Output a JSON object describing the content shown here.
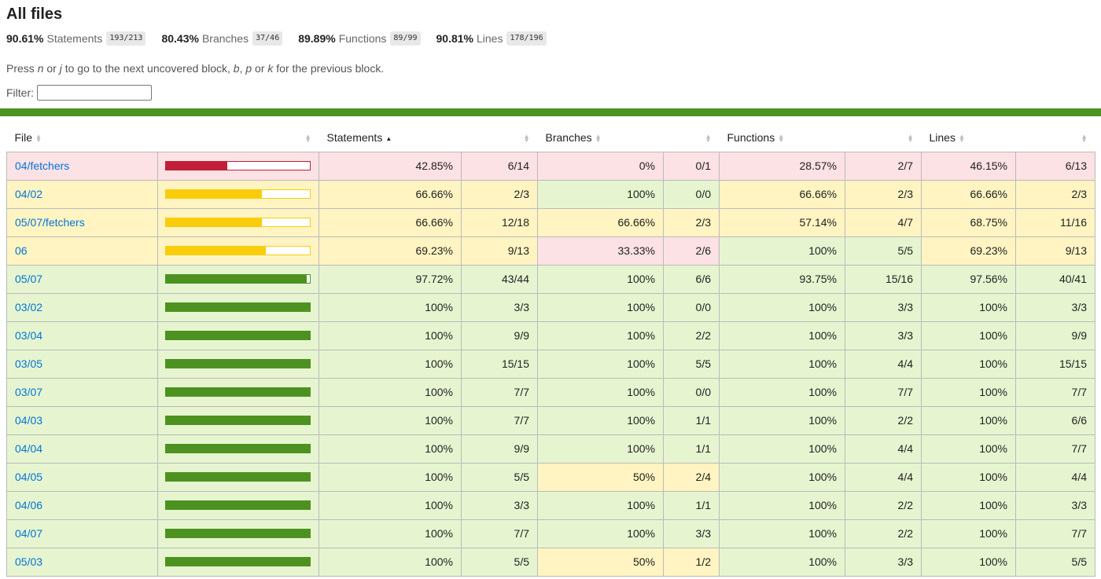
{
  "title": "All files",
  "summary": [
    {
      "pct": "90.61%",
      "name": "Statements",
      "fraction": "193/213"
    },
    {
      "pct": "80.43%",
      "name": "Branches",
      "fraction": "37/46"
    },
    {
      "pct": "89.89%",
      "name": "Functions",
      "fraction": "89/99"
    },
    {
      "pct": "90.81%",
      "name": "Lines",
      "fraction": "178/196"
    }
  ],
  "hint": {
    "press": "Press ",
    "n": "n",
    "or1": " or ",
    "j": "j",
    "mid": " to go to the next uncovered block, ",
    "b": "b",
    "comma": ", ",
    "p": "p",
    "or2": " or ",
    "k": "k",
    "end": " for the previous block."
  },
  "filter": {
    "label": "Filter:",
    "value": ""
  },
  "columns": {
    "file": "File",
    "statements": "Statements",
    "branches": "Branches",
    "functions": "Functions",
    "lines": "Lines"
  },
  "colors": {
    "low": "#fce1e5",
    "medium": "#fff4c2",
    "high": "#e6f5d0",
    "bar_low": "#c21f39",
    "bar_medium": "#f9cd0b",
    "bar_high": "#4d9221",
    "link": "#0074d9"
  },
  "rows": [
    {
      "file": "04/fetchers",
      "level": "low",
      "coverage": 42.85,
      "stmt_pct": "42.85%",
      "stmt_frac": "6/14",
      "stmt_lvl": "low",
      "br_pct": "0%",
      "br_frac": "0/1",
      "br_lvl": "low",
      "fn_pct": "28.57%",
      "fn_frac": "2/7",
      "fn_lvl": "low",
      "ln_pct": "46.15%",
      "ln_frac": "6/13",
      "ln_lvl": "low"
    },
    {
      "file": "04/02",
      "level": "medium",
      "coverage": 66.66,
      "stmt_pct": "66.66%",
      "stmt_frac": "2/3",
      "stmt_lvl": "medium",
      "br_pct": "100%",
      "br_frac": "0/0",
      "br_lvl": "high",
      "fn_pct": "66.66%",
      "fn_frac": "2/3",
      "fn_lvl": "medium",
      "ln_pct": "66.66%",
      "ln_frac": "2/3",
      "ln_lvl": "medium"
    },
    {
      "file": "05/07/fetchers",
      "level": "medium",
      "coverage": 66.66,
      "stmt_pct": "66.66%",
      "stmt_frac": "12/18",
      "stmt_lvl": "medium",
      "br_pct": "66.66%",
      "br_frac": "2/3",
      "br_lvl": "medium",
      "fn_pct": "57.14%",
      "fn_frac": "4/7",
      "fn_lvl": "medium",
      "ln_pct": "68.75%",
      "ln_frac": "11/16",
      "ln_lvl": "medium"
    },
    {
      "file": "06",
      "level": "medium",
      "coverage": 69.23,
      "stmt_pct": "69.23%",
      "stmt_frac": "9/13",
      "stmt_lvl": "medium",
      "br_pct": "33.33%",
      "br_frac": "2/6",
      "br_lvl": "low",
      "fn_pct": "100%",
      "fn_frac": "5/5",
      "fn_lvl": "high",
      "ln_pct": "69.23%",
      "ln_frac": "9/13",
      "ln_lvl": "medium"
    },
    {
      "file": "05/07",
      "level": "high",
      "coverage": 97.72,
      "stmt_pct": "97.72%",
      "stmt_frac": "43/44",
      "stmt_lvl": "high",
      "br_pct": "100%",
      "br_frac": "6/6",
      "br_lvl": "high",
      "fn_pct": "93.75%",
      "fn_frac": "15/16",
      "fn_lvl": "high",
      "ln_pct": "97.56%",
      "ln_frac": "40/41",
      "ln_lvl": "high"
    },
    {
      "file": "03/02",
      "level": "high",
      "coverage": 100,
      "stmt_pct": "100%",
      "stmt_frac": "3/3",
      "stmt_lvl": "high",
      "br_pct": "100%",
      "br_frac": "0/0",
      "br_lvl": "high",
      "fn_pct": "100%",
      "fn_frac": "3/3",
      "fn_lvl": "high",
      "ln_pct": "100%",
      "ln_frac": "3/3",
      "ln_lvl": "high"
    },
    {
      "file": "03/04",
      "level": "high",
      "coverage": 100,
      "stmt_pct": "100%",
      "stmt_frac": "9/9",
      "stmt_lvl": "high",
      "br_pct": "100%",
      "br_frac": "2/2",
      "br_lvl": "high",
      "fn_pct": "100%",
      "fn_frac": "3/3",
      "fn_lvl": "high",
      "ln_pct": "100%",
      "ln_frac": "9/9",
      "ln_lvl": "high"
    },
    {
      "file": "03/05",
      "level": "high",
      "coverage": 100,
      "stmt_pct": "100%",
      "stmt_frac": "15/15",
      "stmt_lvl": "high",
      "br_pct": "100%",
      "br_frac": "5/5",
      "br_lvl": "high",
      "fn_pct": "100%",
      "fn_frac": "4/4",
      "fn_lvl": "high",
      "ln_pct": "100%",
      "ln_frac": "15/15",
      "ln_lvl": "high"
    },
    {
      "file": "03/07",
      "level": "high",
      "coverage": 100,
      "stmt_pct": "100%",
      "stmt_frac": "7/7",
      "stmt_lvl": "high",
      "br_pct": "100%",
      "br_frac": "0/0",
      "br_lvl": "high",
      "fn_pct": "100%",
      "fn_frac": "7/7",
      "fn_lvl": "high",
      "ln_pct": "100%",
      "ln_frac": "7/7",
      "ln_lvl": "high"
    },
    {
      "file": "04/03",
      "level": "high",
      "coverage": 100,
      "stmt_pct": "100%",
      "stmt_frac": "7/7",
      "stmt_lvl": "high",
      "br_pct": "100%",
      "br_frac": "1/1",
      "br_lvl": "high",
      "fn_pct": "100%",
      "fn_frac": "2/2",
      "fn_lvl": "high",
      "ln_pct": "100%",
      "ln_frac": "6/6",
      "ln_lvl": "high"
    },
    {
      "file": "04/04",
      "level": "high",
      "coverage": 100,
      "stmt_pct": "100%",
      "stmt_frac": "9/9",
      "stmt_lvl": "high",
      "br_pct": "100%",
      "br_frac": "1/1",
      "br_lvl": "high",
      "fn_pct": "100%",
      "fn_frac": "4/4",
      "fn_lvl": "high",
      "ln_pct": "100%",
      "ln_frac": "7/7",
      "ln_lvl": "high"
    },
    {
      "file": "04/05",
      "level": "high",
      "coverage": 100,
      "stmt_pct": "100%",
      "stmt_frac": "5/5",
      "stmt_lvl": "high",
      "br_pct": "50%",
      "br_frac": "2/4",
      "br_lvl": "medium",
      "fn_pct": "100%",
      "fn_frac": "4/4",
      "fn_lvl": "high",
      "ln_pct": "100%",
      "ln_frac": "4/4",
      "ln_lvl": "high"
    },
    {
      "file": "04/06",
      "level": "high",
      "coverage": 100,
      "stmt_pct": "100%",
      "stmt_frac": "3/3",
      "stmt_lvl": "high",
      "br_pct": "100%",
      "br_frac": "1/1",
      "br_lvl": "high",
      "fn_pct": "100%",
      "fn_frac": "2/2",
      "fn_lvl": "high",
      "ln_pct": "100%",
      "ln_frac": "3/3",
      "ln_lvl": "high"
    },
    {
      "file": "04/07",
      "level": "high",
      "coverage": 100,
      "stmt_pct": "100%",
      "stmt_frac": "7/7",
      "stmt_lvl": "high",
      "br_pct": "100%",
      "br_frac": "3/3",
      "br_lvl": "high",
      "fn_pct": "100%",
      "fn_frac": "2/2",
      "fn_lvl": "high",
      "ln_pct": "100%",
      "ln_frac": "7/7",
      "ln_lvl": "high"
    },
    {
      "file": "05/03",
      "level": "high",
      "coverage": 100,
      "stmt_pct": "100%",
      "stmt_frac": "5/5",
      "stmt_lvl": "high",
      "br_pct": "50%",
      "br_frac": "1/2",
      "br_lvl": "medium",
      "fn_pct": "100%",
      "fn_frac": "3/3",
      "fn_lvl": "high",
      "ln_pct": "100%",
      "ln_frac": "5/5",
      "ln_lvl": "high"
    }
  ]
}
